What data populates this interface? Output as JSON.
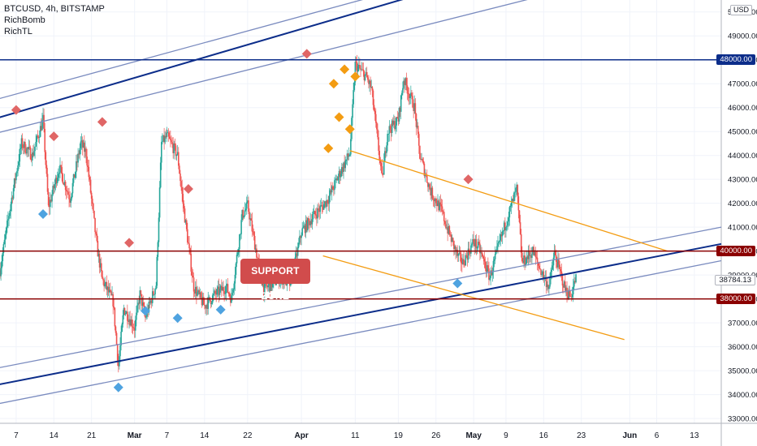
{
  "legend": {
    "symbol": "BTCUSD, 4h, BITSTAMP",
    "indicator1": "RichBomb",
    "indicator2": "RichTL"
  },
  "currency_label": "USD",
  "annotation": {
    "text": "SUPPORT ZONE"
  },
  "price_labels": {
    "current": "38784.13",
    "level_high": "48000.00",
    "level_mid": "40000.00",
    "level_low": "38000.00"
  },
  "colors": {
    "background": "#ffffff",
    "grid": "#f0f3fa",
    "candle_up": "#26a69a",
    "candle_down": "#ef5350",
    "channel_main": "#0c2d8a",
    "channel_outer": "#7a8bbf",
    "resistance_line": "#8b0000",
    "orange_trend": "#f39c12",
    "marker_red": "#e06666",
    "marker_blue": "#4fa3e0",
    "marker_orange": "#f39c12"
  },
  "chart_data": {
    "type": "candlestick",
    "symbol": "BTCUSD",
    "timeframe": "4h",
    "exchange": "BITSTAMP",
    "ylim": [
      32800,
      50500
    ],
    "y_ticks": [
      33000,
      34000,
      35000,
      36000,
      37000,
      38000,
      39000,
      40000,
      41000,
      42000,
      43000,
      44000,
      45000,
      46000,
      47000,
      48000,
      49000,
      50000
    ],
    "y_tick_labels": [
      "33000.00",
      "34000.00",
      "35000.00",
      "36000.00",
      "37000.00",
      "38000.00",
      "39000.00",
      "40000.00",
      "41000.00",
      "42000.00",
      "43000.00",
      "44000.00",
      "45000.00",
      "46000.00",
      "47000.00",
      "48000.00",
      "49000.00",
      "50000.00"
    ],
    "x_range": [
      "2021-02-04",
      "2021-06-18"
    ],
    "x_ticks": [
      {
        "date": "2021-02-07",
        "label": "7"
      },
      {
        "date": "2021-02-14",
        "label": "14"
      },
      {
        "date": "2021-02-21",
        "label": "21"
      },
      {
        "date": "2021-03-01",
        "label": "Mar"
      },
      {
        "date": "2021-03-07",
        "label": "7"
      },
      {
        "date": "2021-03-14",
        "label": "14"
      },
      {
        "date": "2021-03-22",
        "label": "22"
      },
      {
        "date": "2021-04-01",
        "label": "Apr"
      },
      {
        "date": "2021-04-11",
        "label": "11"
      },
      {
        "date": "2021-04-19",
        "label": "19"
      },
      {
        "date": "2021-04-26",
        "label": "26"
      },
      {
        "date": "2021-05-03",
        "label": "May"
      },
      {
        "date": "2021-05-09",
        "label": "9"
      },
      {
        "date": "2021-05-16",
        "label": "16"
      },
      {
        "date": "2021-05-23",
        "label": "23"
      },
      {
        "date": "2021-06-01",
        "label": "Jun"
      },
      {
        "date": "2021-06-06",
        "label": "6"
      },
      {
        "date": "2021-06-13",
        "label": "13"
      }
    ],
    "price_path": [
      [
        "2021-02-04",
        39200
      ],
      [
        "2021-02-06",
        42000
      ],
      [
        "2021-02-08",
        44500
      ],
      [
        "2021-02-10",
        44000
      ],
      [
        "2021-02-12",
        45500
      ],
      [
        "2021-02-13",
        41800
      ],
      [
        "2021-02-15",
        43500
      ],
      [
        "2021-02-17",
        42200
      ],
      [
        "2021-02-19",
        44500
      ],
      [
        "2021-02-20",
        44100
      ],
      [
        "2021-02-22",
        40200
      ],
      [
        "2021-02-23",
        38800
      ],
      [
        "2021-02-25",
        37900
      ],
      [
        "2021-02-26",
        35200
      ],
      [
        "2021-02-27",
        37600
      ],
      [
        "2021-03-01",
        36800
      ],
      [
        "2021-03-02",
        38200
      ],
      [
        "2021-03-03",
        37200
      ],
      [
        "2021-03-05",
        38600
      ],
      [
        "2021-03-06",
        44500
      ],
      [
        "2021-03-07",
        44800
      ],
      [
        "2021-03-09",
        44000
      ],
      [
        "2021-03-10",
        42000
      ],
      [
        "2021-03-12",
        38500
      ],
      [
        "2021-03-14",
        37700
      ],
      [
        "2021-03-16",
        38200
      ],
      [
        "2021-03-18",
        38500
      ],
      [
        "2021-03-19",
        38000
      ],
      [
        "2021-03-21",
        41500
      ],
      [
        "2021-03-22",
        41900
      ],
      [
        "2021-03-24",
        39500
      ],
      [
        "2021-03-25",
        38400
      ],
      [
        "2021-03-27",
        38700
      ],
      [
        "2021-03-28",
        38900
      ],
      [
        "2021-03-30",
        38600
      ],
      [
        "2021-04-01",
        40800
      ],
      [
        "2021-04-03",
        41400
      ],
      [
        "2021-04-05",
        41900
      ],
      [
        "2021-04-06",
        42200
      ],
      [
        "2021-04-08",
        43200
      ],
      [
        "2021-04-10",
        44100
      ],
      [
        "2021-04-11",
        47800
      ],
      [
        "2021-04-13",
        47300
      ],
      [
        "2021-04-14",
        46800
      ],
      [
        "2021-04-16",
        43000
      ],
      [
        "2021-04-17",
        45000
      ],
      [
        "2021-04-19",
        45500
      ],
      [
        "2021-04-20",
        47200
      ],
      [
        "2021-04-22",
        46000
      ],
      [
        "2021-04-23",
        44000
      ],
      [
        "2021-04-25",
        42500
      ],
      [
        "2021-04-27",
        41700
      ],
      [
        "2021-04-28",
        41000
      ],
      [
        "2021-04-30",
        39800
      ],
      [
        "2021-05-01",
        39500
      ],
      [
        "2021-05-03",
        40400
      ],
      [
        "2021-05-04",
        40100
      ],
      [
        "2021-05-06",
        38900
      ],
      [
        "2021-05-08",
        40500
      ],
      [
        "2021-05-09",
        41200
      ],
      [
        "2021-05-11",
        42600
      ],
      [
        "2021-05-12",
        39500
      ],
      [
        "2021-05-14",
        40000
      ],
      [
        "2021-05-15",
        39400
      ],
      [
        "2021-05-17",
        38500
      ],
      [
        "2021-05-18",
        39900
      ],
      [
        "2021-05-20",
        38400
      ],
      [
        "2021-05-21",
        38100
      ],
      [
        "2021-05-22",
        38900
      ]
    ],
    "series": [
      {
        "name": "Ascending channel upper outer",
        "type": "line",
        "points": [
          [
            "2021-02-01",
            46200
          ],
          [
            "2021-04-30",
            51600
          ]
        ]
      },
      {
        "name": "Ascending channel upper main",
        "type": "line",
        "points": [
          [
            "2021-02-01",
            45400
          ],
          [
            "2021-04-30",
            51200
          ]
        ]
      },
      {
        "name": "Ascending channel upper inner",
        "type": "line",
        "points": [
          [
            "2021-02-01",
            44800
          ],
          [
            "2021-05-25",
            51200
          ]
        ]
      },
      {
        "name": "Ascending channel lower outer",
        "type": "line",
        "points": [
          [
            "2021-02-01",
            35000
          ],
          [
            "2021-06-18",
            41000
          ]
        ]
      },
      {
        "name": "Ascending channel lower main",
        "type": "line",
        "points": [
          [
            "2021-02-01",
            34300
          ],
          [
            "2021-06-18",
            40300
          ]
        ]
      },
      {
        "name": "Ascending channel lower inner",
        "type": "line",
        "points": [
          [
            "2021-02-01",
            33500
          ],
          [
            "2021-06-18",
            39600
          ]
        ]
      },
      {
        "name": "Descending trendline upper",
        "type": "line",
        "points": [
          [
            "2021-04-10",
            44200
          ],
          [
            "2021-06-08",
            40000
          ]
        ]
      },
      {
        "name": "Descending trendline lower",
        "type": "line",
        "points": [
          [
            "2021-04-05",
            39800
          ],
          [
            "2021-05-31",
            36300
          ]
        ]
      },
      {
        "name": "Horizontal level 48000",
        "type": "hline",
        "value": 48000
      },
      {
        "name": "Horizontal level 40000",
        "type": "hline",
        "value": 40000
      },
      {
        "name": "Horizontal level 38000",
        "type": "hline",
        "value": 38000
      }
    ],
    "markers": [
      {
        "kind": "red",
        "date": "2021-02-07",
        "value": 45900
      },
      {
        "kind": "red",
        "date": "2021-02-14",
        "value": 44800
      },
      {
        "kind": "blue",
        "date": "2021-02-12",
        "value": 41550
      },
      {
        "kind": "red",
        "date": "2021-02-23",
        "value": 45400
      },
      {
        "kind": "red",
        "date": "2021-02-28",
        "value": 40350
      },
      {
        "kind": "blue",
        "date": "2021-02-26",
        "value": 34300
      },
      {
        "kind": "blue",
        "date": "2021-03-03",
        "value": 37500
      },
      {
        "kind": "blue",
        "date": "2021-03-09",
        "value": 37200
      },
      {
        "kind": "red",
        "date": "2021-03-11",
        "value": 42600
      },
      {
        "kind": "blue",
        "date": "2021-03-17",
        "value": 37550
      },
      {
        "kind": "red",
        "date": "2021-04-02",
        "value": 48250
      },
      {
        "kind": "orange",
        "date": "2021-04-06",
        "value": 44300
      },
      {
        "kind": "orange",
        "date": "2021-04-07",
        "value": 47000
      },
      {
        "kind": "orange",
        "date": "2021-04-08",
        "value": 45600
      },
      {
        "kind": "orange",
        "date": "2021-04-09",
        "value": 47600
      },
      {
        "kind": "orange",
        "date": "2021-04-10",
        "value": 45100
      },
      {
        "kind": "orange",
        "date": "2021-04-11",
        "value": 47300
      },
      {
        "kind": "blue",
        "date": "2021-04-30",
        "value": 38650
      },
      {
        "kind": "red",
        "date": "2021-05-02",
        "value": 43000
      }
    ]
  }
}
